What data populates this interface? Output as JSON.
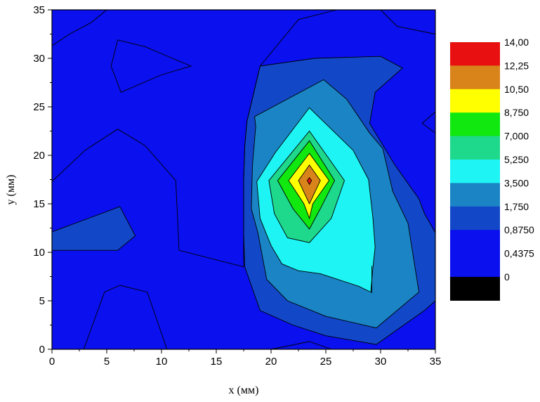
{
  "chart_data": {
    "type": "contour",
    "xlabel": "x (мм)",
    "ylabel": "y (мм)",
    "xlim": [
      0,
      35
    ],
    "ylim": [
      0,
      35
    ],
    "xticks": [
      "0",
      "5",
      "10",
      "15",
      "20",
      "25",
      "30",
      "35"
    ],
    "yticks": [
      "0",
      "5",
      "10",
      "15",
      "20",
      "25",
      "30",
      "35"
    ],
    "xtick_values": [
      0,
      5,
      10,
      15,
      20,
      25,
      30,
      35
    ],
    "ytick_values": [
      0,
      5,
      10,
      15,
      20,
      25,
      30,
      35
    ],
    "grid": false,
    "legend_position": "right",
    "legend": {
      "levels": [
        {
          "label": "14,00",
          "color": "#e81010"
        },
        {
          "label": "12,25",
          "color": "#d8841a"
        },
        {
          "label": "10,50",
          "color": "#ffff00"
        },
        {
          "label": "8,750",
          "color": "#10e810"
        },
        {
          "label": "7,000",
          "color": "#1ed88c"
        },
        {
          "label": "5,250",
          "color": "#1ef4f4"
        },
        {
          "label": "3,500",
          "color": "#1a84c4"
        },
        {
          "label": "1,750",
          "color": "#1248c8"
        },
        {
          "label": "0,8750",
          "color": "#0a10ee"
        },
        {
          "label": "0,4375",
          "color": "#0a10ee"
        },
        {
          "label": "0",
          "color": "#000000"
        }
      ]
    },
    "regions": [
      {
        "level": "1,750",
        "color": "#1248c8",
        "polygon": [
          [
            17.8,
            23.5
          ],
          [
            19,
            29.2
          ],
          [
            24,
            30
          ],
          [
            30,
            30.2
          ],
          [
            32,
            29
          ],
          [
            29.5,
            26.5
          ],
          [
            29,
            23.3
          ],
          [
            31.3,
            19
          ],
          [
            33.5,
            15.5
          ],
          [
            34,
            14
          ],
          [
            35,
            12
          ],
          [
            35,
            5
          ],
          [
            34,
            4
          ],
          [
            29.6,
            0.5
          ],
          [
            25,
            1.4
          ],
          [
            22,
            2.5
          ],
          [
            19,
            4
          ],
          [
            17.6,
            8.5
          ],
          [
            17.5,
            12
          ],
          [
            17.5,
            17.5
          ],
          [
            17.6,
            21
          ]
        ]
      },
      {
        "level": "1,750",
        "color": "#1248c8",
        "polygon": [
          [
            0,
            10.2
          ],
          [
            6,
            10.2
          ],
          [
            7.6,
            11.7
          ],
          [
            6.2,
            14.7
          ],
          [
            0,
            12.1
          ]
        ]
      },
      {
        "level": "3,500",
        "color": "#1a84c4",
        "polygon": [
          [
            18.5,
            24
          ],
          [
            24.8,
            27.8
          ],
          [
            26.9,
            25.8
          ],
          [
            29,
            22.3
          ],
          [
            30.2,
            20.7
          ],
          [
            31.1,
            16.3
          ],
          [
            32.5,
            13
          ],
          [
            33.5,
            5.9
          ],
          [
            29.6,
            2.2
          ],
          [
            25,
            3.4
          ],
          [
            21.5,
            5
          ],
          [
            19.6,
            7.2
          ],
          [
            18.8,
            12
          ],
          [
            18.2,
            14.5
          ],
          [
            18.3,
            19
          ],
          [
            18.6,
            23
          ]
        ]
      },
      {
        "level": "5,250",
        "color": "#1ef4f4",
        "polygon": [
          [
            23.5,
            24.9
          ],
          [
            27.5,
            20.5
          ],
          [
            28.9,
            17.5
          ],
          [
            29.3,
            13.5
          ],
          [
            29.5,
            10.5
          ],
          [
            29.3,
            8.5
          ],
          [
            29.1,
            5.9
          ],
          [
            28,
            6.5
          ],
          [
            24.5,
            7.8
          ],
          [
            22.5,
            8.1
          ],
          [
            21,
            8.8
          ],
          [
            20,
            10.7
          ],
          [
            19,
            13.5
          ],
          [
            18.7,
            17.3
          ],
          [
            20.4,
            20.3
          ]
        ]
      },
      {
        "level": "7,000",
        "color": "#1ed88c",
        "polygon": [
          [
            23.5,
            22.5
          ],
          [
            26.7,
            17.4
          ],
          [
            25.5,
            13.5
          ],
          [
            23.5,
            11
          ],
          [
            21.5,
            11.5
          ],
          [
            20.3,
            14
          ],
          [
            19.8,
            17.4
          ]
        ]
      },
      {
        "level": "8,750",
        "color": "#10e810",
        "polygon": [
          [
            23.5,
            21.5
          ],
          [
            25.8,
            17.4
          ],
          [
            24.5,
            14.5
          ],
          [
            23.5,
            12.4
          ],
          [
            22,
            14.5
          ],
          [
            20.6,
            17.4
          ]
        ]
      },
      {
        "level": "10,50",
        "color": "#ffff00",
        "polygon": [
          [
            23.5,
            20.2
          ],
          [
            25.3,
            17.4
          ],
          [
            23.8,
            15
          ],
          [
            23.5,
            13.5
          ],
          [
            23,
            15
          ],
          [
            21.6,
            17.4
          ]
        ]
      },
      {
        "level": "12,25",
        "color": "#d8841a",
        "polygon": [
          [
            23.5,
            19
          ],
          [
            24.5,
            17.4
          ],
          [
            23.5,
            15
          ],
          [
            22.5,
            17.4
          ]
        ]
      },
      {
        "level": "14,00",
        "color": "#e81010",
        "polygon": [
          [
            23.5,
            17.7
          ],
          [
            23.7,
            17.4
          ],
          [
            23.5,
            17
          ],
          [
            23.3,
            17.4
          ]
        ]
      }
    ],
    "contour_lines": [
      [
        [
          0,
          31.3
        ],
        [
          1.6,
          32.5
        ],
        [
          3.6,
          33.7
        ],
        [
          5,
          35
        ]
      ],
      [
        [
          6,
          35
        ],
        [
          8.5,
          35
        ],
        [
          13,
          35
        ]
      ],
      [
        [
          5.4,
          29.2
        ],
        [
          6,
          31.9
        ],
        [
          8.5,
          31.2
        ],
        [
          11,
          30
        ],
        [
          12.7,
          29.2
        ],
        [
          10,
          28.3
        ],
        [
          6.3,
          26.5
        ],
        [
          5.4,
          29.2
        ]
      ],
      [
        [
          0,
          17.3
        ],
        [
          3,
          20.5
        ],
        [
          6,
          22.7
        ],
        [
          8.5,
          21
        ],
        [
          11.3,
          17.4
        ],
        [
          11.6,
          10.2
        ],
        [
          17.5,
          8.5
        ],
        [
          17.5,
          12
        ],
        [
          17.5,
          17.5
        ],
        [
          17.6,
          21
        ],
        [
          17.8,
          23.5
        ],
        [
          19,
          29.2
        ],
        [
          22.5,
          34
        ],
        [
          26,
          35
        ]
      ],
      [
        [
          30,
          35
        ],
        [
          31.5,
          33.3
        ],
        [
          35,
          32.5
        ]
      ],
      [
        [
          35,
          24.5
        ],
        [
          33.8,
          23.3
        ],
        [
          35,
          22.3
        ]
      ],
      [
        [
          2.9,
          0
        ],
        [
          4.8,
          5.9
        ],
        [
          6.2,
          6.6
        ],
        [
          8.7,
          5.9
        ],
        [
          10.5,
          0
        ]
      ],
      [
        [
          20,
          0
        ],
        [
          23.5,
          0.8
        ],
        [
          25.5,
          0
        ]
      ],
      [
        [
          29.2,
          8.6
        ],
        [
          29.2,
          5.8
        ]
      ]
    ]
  }
}
